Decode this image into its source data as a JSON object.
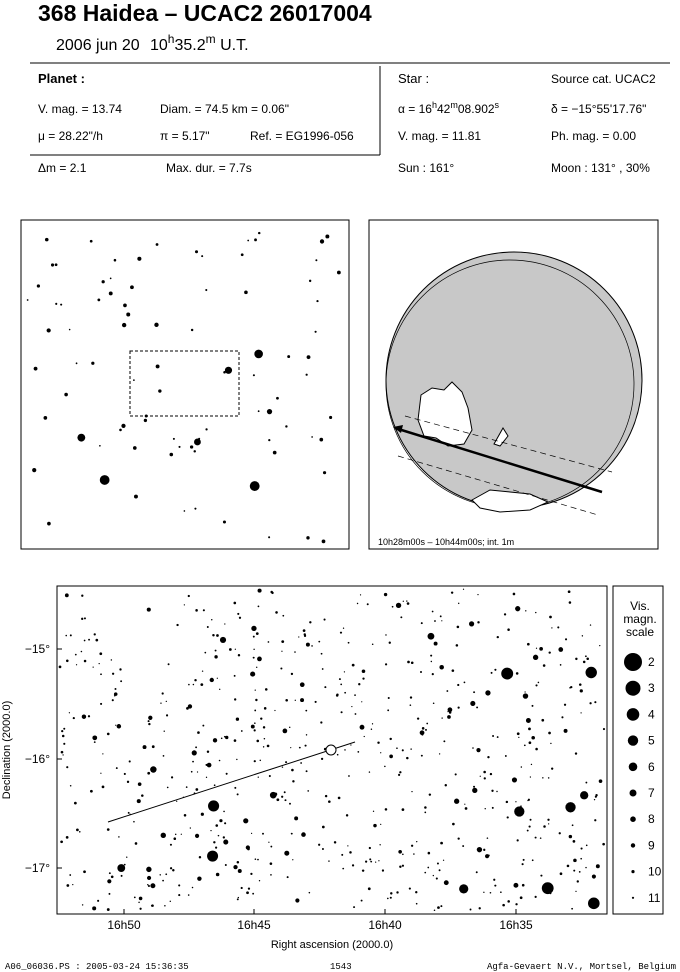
{
  "header": {
    "title": "368 Haidea  –  UCAC2 26017004",
    "date": "2006 jun 20",
    "time": [
      {
        "text": "10"
      },
      {
        "text": "h",
        "sup": true
      },
      {
        "text": "35.2"
      },
      {
        "text": "m",
        "sup": true
      },
      {
        "text": " U.T."
      }
    ]
  },
  "planet": {
    "label": "Planet :",
    "vmag": "V. mag. = 13.74",
    "diam": "Diam. = 74.5 km = 0.06\"",
    "mu": "μ =  28.22\"/h",
    "parallax": "π =  5.17\"",
    "ref": "Ref. = EG1996-056"
  },
  "star": {
    "label": "Star :",
    "source": "Source cat.  UCAC2",
    "alpha": [
      {
        "text": "α = 16"
      },
      {
        "text": "h",
        "sup": true
      },
      {
        "text": "42"
      },
      {
        "text": "m",
        "sup": true
      },
      {
        "text": "08.902"
      },
      {
        "text": "s",
        "sup": true
      }
    ],
    "delta": "δ = −15°55'17.76\"",
    "vmag": "V. mag. = 11.81",
    "phmag": "Ph. mag. =  0.00"
  },
  "event": {
    "dm": "Δm = 2.1",
    "duration": "Max. dur. = 7.7s",
    "sun": "Sun : 161°",
    "moon": "Moon : 131° , 30%"
  },
  "globe": {
    "caption": "10h28m00s – 10h44m00s; int. 1m"
  },
  "chart": {
    "y_label": "Declination (2000.0)",
    "x_label": "Right ascension (2000.0)",
    "y_ticks": [
      "−15°",
      "−16°",
      "−17°"
    ],
    "x_ticks": [
      "16h50",
      "16h45",
      "16h40",
      "16h35"
    ]
  },
  "scale": {
    "title": [
      "Vis.",
      "magn.",
      "scale"
    ],
    "labels": [
      "2",
      "3",
      "4",
      "5",
      "6",
      "7",
      "8",
      "9",
      "10",
      "11"
    ]
  },
  "footer": {
    "file": "A06_06036.PS : 2005-03-24 15:36:35",
    "page": "1543",
    "credit": "Agfa-Gevaert N.V., Mortsel, Belgium"
  }
}
